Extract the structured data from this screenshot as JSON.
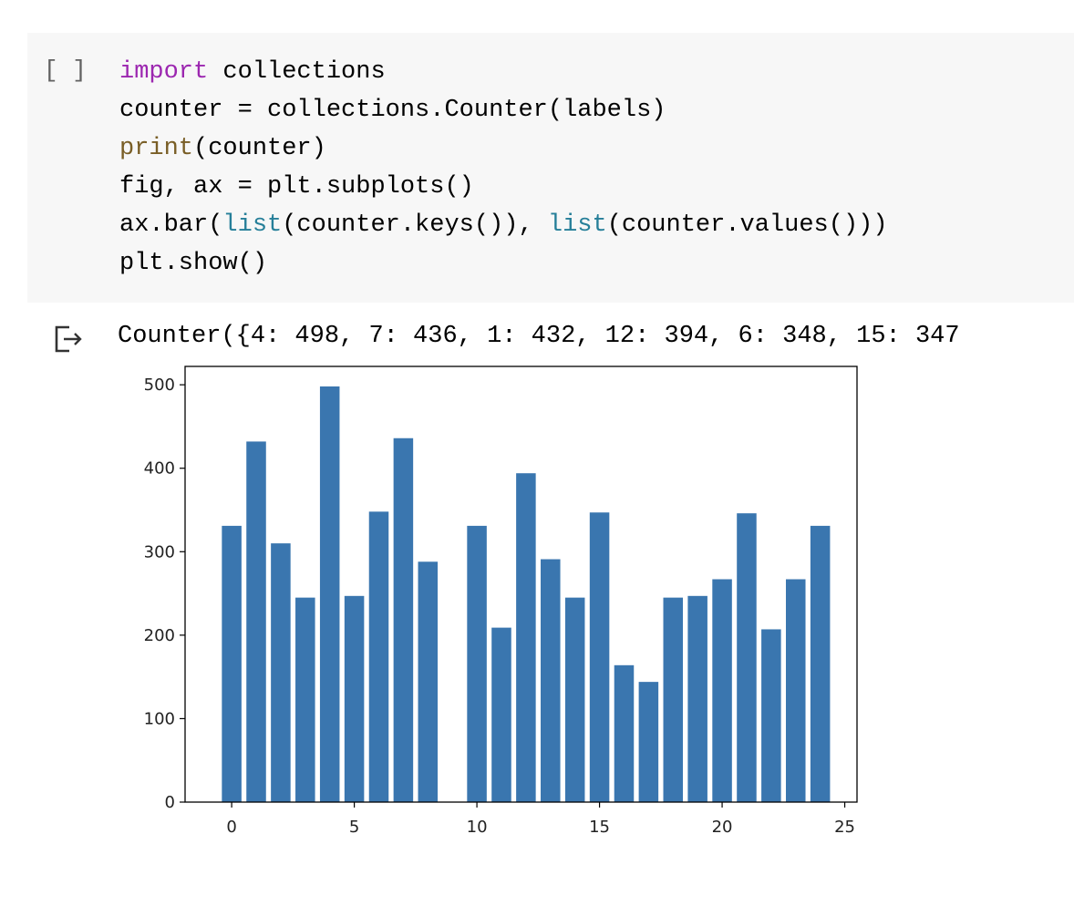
{
  "cell": {
    "run_button": "[ ]",
    "code_lines": [
      {
        "parts": [
          {
            "t": "import",
            "c": "kw"
          },
          {
            "t": " collections",
            "c": ""
          }
        ]
      },
      {
        "parts": [
          {
            "t": "counter = collections.Counter(labels)",
            "c": ""
          }
        ]
      },
      {
        "parts": [
          {
            "t": "print",
            "c": "fn"
          },
          {
            "t": "(counter)",
            "c": ""
          }
        ]
      },
      {
        "parts": [
          {
            "t": "fig, ax = plt.subplots()",
            "c": ""
          }
        ]
      },
      {
        "parts": [
          {
            "t": "ax.bar(",
            "c": ""
          },
          {
            "t": "list",
            "c": "bi"
          },
          {
            "t": "(counter.keys()), ",
            "c": ""
          },
          {
            "t": "list",
            "c": "bi"
          },
          {
            "t": "(counter.values()))",
            "c": ""
          }
        ]
      },
      {
        "parts": [
          {
            "t": "plt.show()",
            "c": ""
          }
        ]
      }
    ]
  },
  "output": {
    "icon": "output-arrow-icon",
    "text": "Counter({4: 498, 7: 436, 1: 432, 12: 394, 6: 348, 15: 347"
  },
  "colors": {
    "bar": "#3a76af",
    "keyword": "#9c27b0",
    "function": "#795e26",
    "builtin": "#267f99"
  },
  "chart_data": {
    "type": "bar",
    "x": [
      0,
      1,
      2,
      3,
      4,
      5,
      6,
      7,
      8,
      10,
      11,
      12,
      13,
      14,
      15,
      16,
      17,
      18,
      19,
      20,
      21,
      22,
      23,
      24
    ],
    "values": [
      331,
      432,
      310,
      245,
      498,
      247,
      348,
      436,
      288,
      331,
      209,
      394,
      291,
      245,
      347,
      164,
      144,
      245,
      247,
      267,
      346,
      207,
      267,
      331
    ],
    "xticks": [
      "0",
      "5",
      "10",
      "15",
      "20",
      "25"
    ],
    "yticks": [
      "0",
      "100",
      "200",
      "300",
      "400",
      "500"
    ],
    "xlim": [
      -1.9,
      25.5
    ],
    "ylim": [
      0,
      522
    ],
    "grid": false,
    "title": "",
    "xlabel": "",
    "ylabel": ""
  }
}
